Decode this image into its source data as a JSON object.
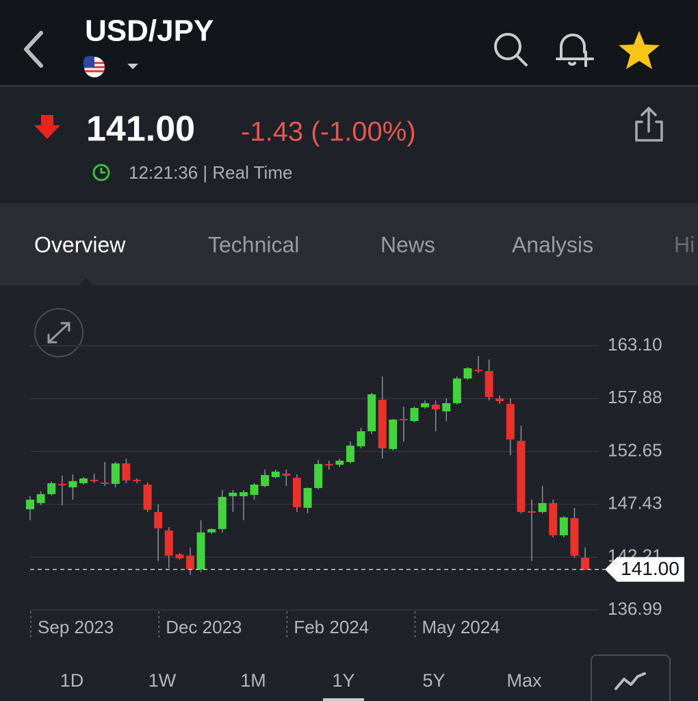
{
  "header": {
    "symbol": "USD/JPY"
  },
  "quote": {
    "price": "141.00",
    "change": "-1.43 (-1.00%)",
    "time": "12:21:36 | Real Time"
  },
  "tabs": [
    "Overview",
    "Technical",
    "News",
    "Analysis",
    "Hi"
  ],
  "ranges": [
    "1D",
    "1W",
    "1M",
    "1Y",
    "5Y",
    "Max"
  ],
  "chart_data": {
    "type": "candlestick",
    "up_color": "#43d33f",
    "down_color": "#e8322b",
    "xlim": [
      -0.9,
      53.6
    ],
    "ylim": [
      136.38,
      165.47
    ],
    "yticks": [
      {
        "value": 163.1,
        "label": "163.10"
      },
      157.88,
      152.65,
      147.43,
      142.21,
      136.99
    ],
    "xticks": [
      {
        "value": 0,
        "label": "Sep 2023"
      },
      {
        "value": 12,
        "label": "Dec 2023"
      },
      {
        "value": 24,
        "label": "Feb 2024"
      },
      {
        "value": 36,
        "label": "May 2024"
      }
    ],
    "grid": true,
    "last_value": {
      "value": 141.0,
      "label": "141.00"
    },
    "open": [
      146.94,
      147.55,
      148.43,
      149.44,
      149.11,
      149.51,
      149.85,
      149.58,
      149.44,
      151.47,
      149.85,
      149.38,
      146.67,
      144.85,
      142.48,
      142.35,
      140.99,
      144.65,
      144.98,
      148.23,
      148.23,
      148.36,
      149.24,
      150.12,
      150.46,
      150.05,
      147.08,
      149.04,
      151.41,
      151.34,
      151.61,
      153.16,
      154.65,
      157.76,
      152.89,
      155.87,
      155.66,
      157.02,
      157.29,
      156.61,
      157.42,
      159.86,
      160.73,
      160.6,
      157.89,
      157.35,
      153.7,
      146.74,
      146.67,
      147.55,
      144.37,
      146.06,
      142.14
    ],
    "high": [
      148.23,
      148.7,
      149.65,
      150.26,
      150.39,
      150.12,
      150.46,
      151.61,
      151.61,
      151.95,
      149.99,
      149.58,
      147.42,
      145.19,
      142.6,
      143.16,
      145.86,
      145.05,
      148.84,
      148.84,
      148.84,
      149.51,
      150.86,
      150.86,
      150.86,
      150.39,
      149.11,
      151.81,
      151.74,
      151.95,
      153.64,
      154.99,
      158.44,
      160.06,
      155.87,
      157.08,
      157.08,
      157.69,
      157.69,
      157.89,
      160.06,
      161.0,
      162.09,
      161.75,
      158.17,
      157.89,
      155.19,
      147.89,
      149.24,
      147.89,
      146.27,
      147.08,
      143.16
    ],
    "low": [
      145.86,
      147.35,
      148.3,
      147.35,
      147.89,
      149.38,
      149.51,
      149.24,
      149.11,
      149.51,
      149.51,
      146.67,
      141.81,
      141.13,
      141.95,
      140.45,
      140.72,
      144.5,
      144.65,
      146.67,
      145.86,
      147.89,
      149.11,
      149.99,
      149.24,
      146.67,
      146.54,
      148.9,
      150.86,
      151.14,
      151.47,
      152.96,
      154.38,
      151.95,
      152.75,
      153.64,
      155.52,
      156.88,
      154.65,
      155.66,
      157.29,
      159.72,
      160.4,
      157.69,
      157.35,
      152.28,
      146.54,
      141.81,
      146.54,
      144.17,
      144.17,
      142.14,
      140.92
    ],
    "close": [
      147.89,
      148.43,
      149.51,
      149.38,
      149.72,
      149.99,
      149.78,
      149.51,
      151.47,
      149.78,
      149.72,
      146.88,
      145.05,
      142.35,
      142.08,
      140.99,
      144.65,
      144.98,
      148.16,
      148.57,
      148.63,
      149.38,
      150.32,
      150.66,
      150.26,
      147.15,
      149.04,
      151.41,
      151.34,
      151.74,
      153.23,
      154.65,
      158.3,
      152.96,
      155.8,
      155.8,
      156.95,
      157.42,
      156.81,
      157.42,
      159.86,
      160.87,
      160.66,
      158.03,
      157.62,
      153.84,
      146.67,
      146.67,
      147.55,
      144.37,
      146.13,
      142.35,
      141.0
    ]
  }
}
